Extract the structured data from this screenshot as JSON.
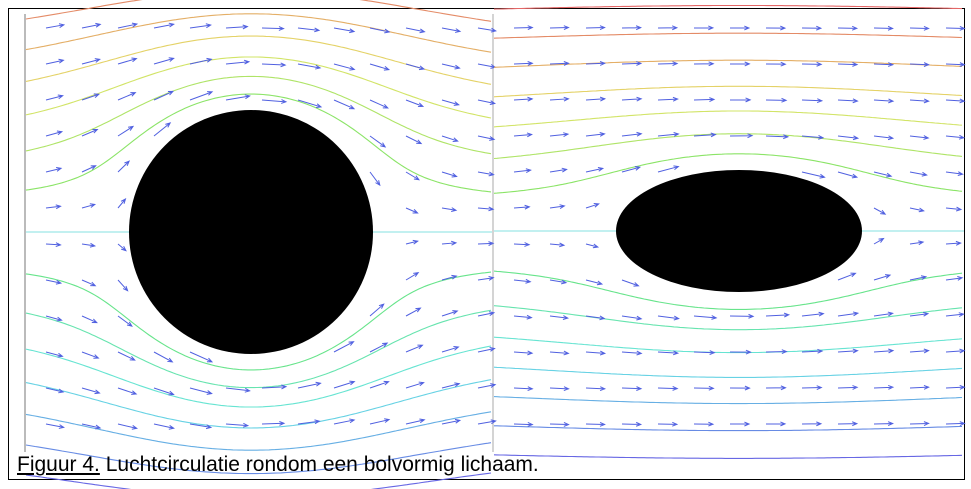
{
  "caption": {
    "label": "Figuur 4.",
    "text": "Luchtcirculatie rondom een bolvormig lichaam."
  }
}
